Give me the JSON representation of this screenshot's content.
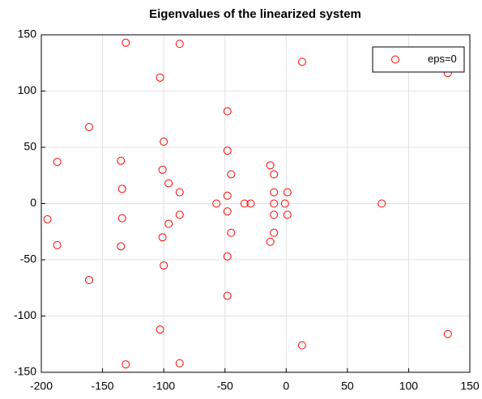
{
  "chart_data": {
    "type": "scatter",
    "title": "Eigenvalues of the linearized system",
    "series": [
      {
        "name": "eps=0",
        "color": "#ff0000",
        "x": [
          -131,
          -87,
          -103,
          13,
          132,
          -48,
          -161,
          -100,
          -48,
          -187,
          -135,
          -101,
          -45,
          -13,
          -10,
          -134,
          -96,
          -87,
          -48,
          -10,
          1,
          -57,
          -34,
          -29,
          -10,
          -1,
          78,
          -195,
          -131,
          -87,
          -103,
          13,
          132,
          -48,
          -161,
          -100,
          -48,
          -187,
          -135,
          -101,
          -45,
          -13,
          -10,
          -134,
          -96,
          -87,
          -48,
          -10,
          1
        ],
        "values": [
          143,
          142,
          112,
          126,
          116,
          82,
          68,
          55,
          47,
          37,
          38,
          30,
          26,
          34,
          26,
          13,
          18,
          10,
          7,
          10,
          10,
          0,
          0,
          0,
          0,
          0,
          0,
          -14,
          -143,
          -142,
          -112,
          -126,
          -116,
          -82,
          -68,
          -55,
          -47,
          -37,
          -38,
          -30,
          -26,
          -34,
          -26,
          -13,
          -18,
          -10,
          -7,
          -10,
          -10
        ]
      }
    ],
    "xlim": [
      -200,
      150
    ],
    "xticks": [
      -200,
      -150,
      -100,
      -50,
      0,
      50,
      100,
      150
    ],
    "ylim": [
      -150,
      150
    ],
    "yticks": [
      -150,
      -100,
      -50,
      0,
      50,
      100,
      150
    ],
    "grid": true,
    "legend": "top-right"
  }
}
